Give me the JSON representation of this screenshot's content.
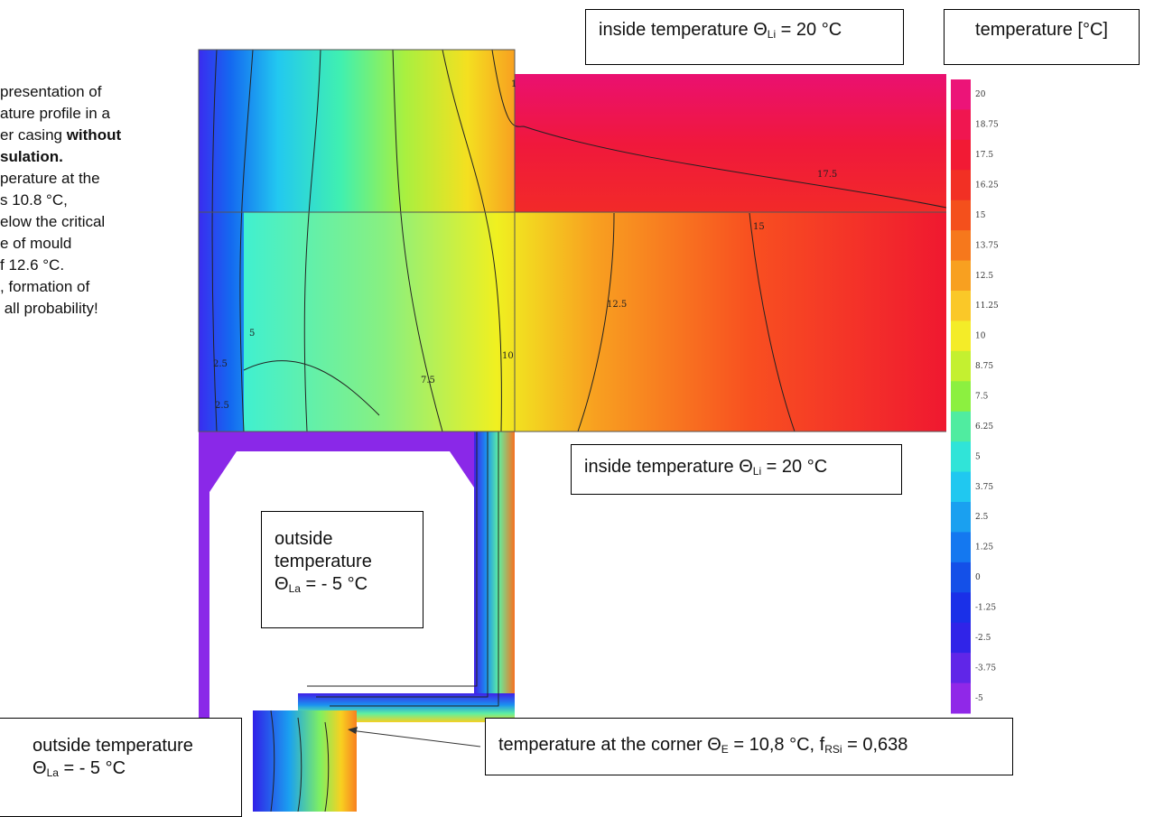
{
  "left_note": {
    "lines": [
      [
        {
          "text": "presentation of"
        }
      ],
      [
        {
          "text": "ature profile in a"
        }
      ],
      [
        {
          "text": "er casing "
        },
        {
          "text": "without",
          "bold": true
        }
      ],
      [
        {
          "text": "sulation.",
          "bold": true
        }
      ],
      [
        {
          "text": "perature at the"
        }
      ],
      [
        {
          "text": "s 10.8 °C,"
        }
      ],
      [
        {
          "text": "elow the critical"
        }
      ],
      [
        {
          "text": "e of mould"
        }
      ],
      [
        {
          "text": "f 12.6 °C."
        }
      ],
      [
        {
          "text": ", formation of"
        }
      ],
      [
        {
          "text": " all probability!"
        }
      ]
    ]
  },
  "labels": {
    "inside_top": [
      [
        {
          "text": "inside temperature Θ"
        },
        {
          "text": "Li",
          "sub": true
        },
        {
          "text": " = 20 °C"
        }
      ]
    ],
    "scale_title": [
      [
        {
          "text": "temperature [°C]"
        }
      ]
    ],
    "inside_middle": [
      [
        {
          "text": "inside temperature Θ"
        },
        {
          "text": "Li",
          "sub": true
        },
        {
          "text": " = 20 °C"
        }
      ]
    ],
    "outside_middle": [
      [
        {
          "text": "outside"
        }
      ],
      [
        {
          "text": "temperature"
        }
      ],
      [
        {
          "text": "Θ"
        },
        {
          "text": "La",
          "sub": true
        },
        {
          "text": " = - 5 °C"
        }
      ]
    ],
    "outside_bottom": [
      [
        {
          "text": "outside temperature"
        }
      ],
      [
        {
          "text": "Θ"
        },
        {
          "text": "La",
          "sub": true
        },
        {
          "text": " = - 5 °C"
        }
      ]
    ],
    "corner": [
      [
        {
          "text": "temperature at the corner Θ"
        },
        {
          "text": "E",
          "sub": true
        },
        {
          "text": " = 10,8 °C, f"
        },
        {
          "text": "RSi",
          "sub": true
        },
        {
          "text": " = 0,638"
        }
      ]
    ]
  },
  "isotherms": [
    "17.5",
    "15",
    "12.5",
    "10",
    "7.5",
    "5",
    "2.5",
    "2.5",
    "1"
  ],
  "scale": {
    "values": [
      20,
      18.75,
      17.5,
      16.25,
      15,
      13.75,
      12.5,
      11.25,
      10,
      8.75,
      7.5,
      6.25,
      5,
      3.75,
      2.5,
      1.25,
      0,
      -1.25,
      -2.5,
      -3.75,
      -5
    ],
    "colors": [
      "#ec1478",
      "#f01650",
      "#f21a34",
      "#f23024",
      "#f4501c",
      "#f6781c",
      "#f8a020",
      "#fac828",
      "#f4ec28",
      "#c4f030",
      "#8cf040",
      "#50eca0",
      "#30e4d8",
      "#20c8f0",
      "#1aa0f0",
      "#1478f0",
      "#1450e8",
      "#1a30e8",
      "#3024e8",
      "#6026e8",
      "#9028e8"
    ]
  }
}
